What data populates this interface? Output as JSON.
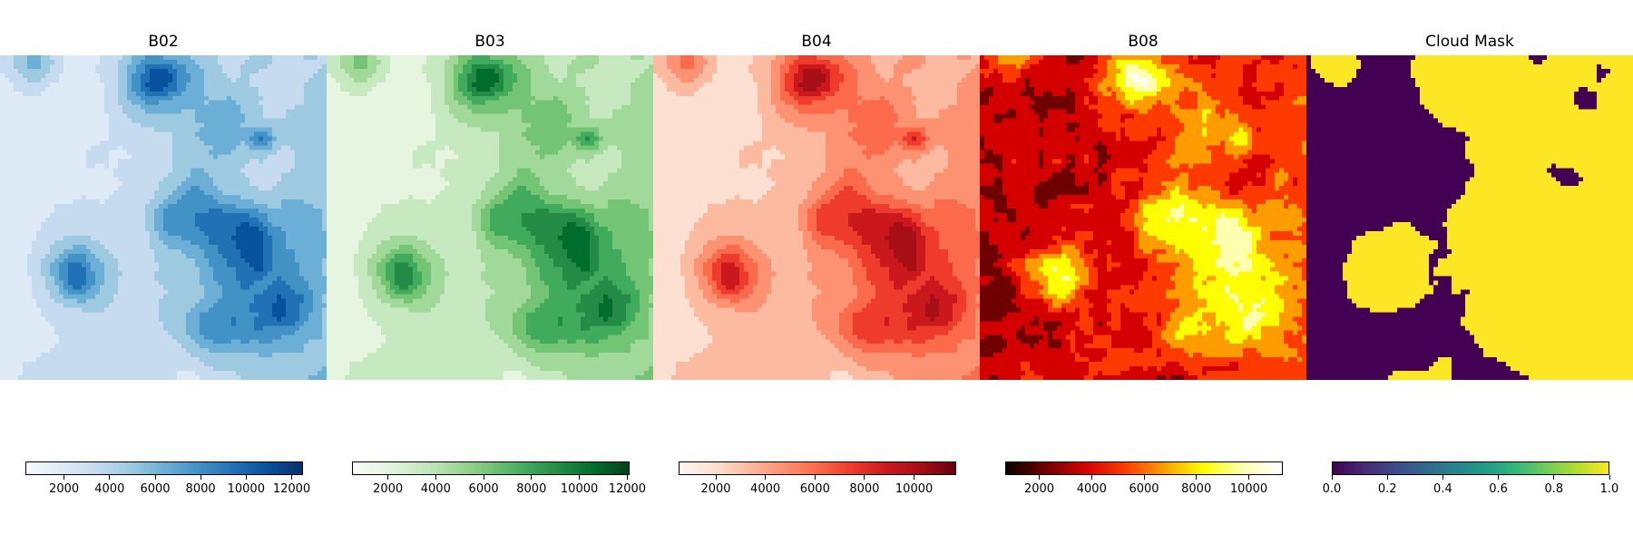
{
  "chart_data": [
    {
      "type": "heatmap",
      "title": "B02",
      "colormap": "Blues",
      "colors": [
        "#f7fbff",
        "#deebf7",
        "#c6dbef",
        "#9ecae1",
        "#6baed6",
        "#4292c6",
        "#2171b5",
        "#08519c",
        "#08306b"
      ],
      "vmin": 300,
      "vmax": 12500,
      "ticks": [
        2000,
        4000,
        6000,
        8000,
        10000,
        12000
      ],
      "tick_labels": [
        "2000",
        "4000",
        "6000",
        "8000",
        "10000",
        "12000"
      ]
    },
    {
      "type": "heatmap",
      "title": "B03",
      "colormap": "Greens",
      "colors": [
        "#f7fcf5",
        "#e5f5e0",
        "#c7e9c0",
        "#a1d99b",
        "#74c476",
        "#41ab5d",
        "#238b45",
        "#006d2c",
        "#00441b"
      ],
      "vmin": 500,
      "vmax": 12100,
      "ticks": [
        2000,
        4000,
        6000,
        8000,
        10000,
        12000
      ],
      "tick_labels": [
        "2000",
        "4000",
        "6000",
        "8000",
        "10000",
        "12000"
      ]
    },
    {
      "type": "heatmap",
      "title": "B04",
      "colormap": "Reds",
      "colors": [
        "#fff5f0",
        "#fee0d2",
        "#fcbba1",
        "#fc9272",
        "#fb6a4a",
        "#ef3b2c",
        "#cb181d",
        "#a50f15",
        "#67000d"
      ],
      "vmin": 500,
      "vmax": 11700,
      "ticks": [
        2000,
        4000,
        6000,
        8000,
        10000
      ],
      "tick_labels": [
        "2000",
        "4000",
        "6000",
        "8000",
        "10000"
      ]
    },
    {
      "type": "heatmap",
      "title": "B08",
      "colormap": "hot",
      "colors": [
        "#0b0000",
        "#6e0000",
        "#d40000",
        "#ff3a00",
        "#ff9d00",
        "#fffe00",
        "#ffffb0",
        "#ffffff"
      ],
      "vmin": 700,
      "vmax": 11300,
      "ticks": [
        2000,
        4000,
        6000,
        8000,
        10000
      ],
      "tick_labels": [
        "2000",
        "4000",
        "6000",
        "8000",
        "10000"
      ]
    },
    {
      "type": "heatmap",
      "title": "Cloud Mask",
      "colormap": "viridis",
      "colors": [
        "#440154",
        "#482878",
        "#3e4989",
        "#31688e",
        "#26828e",
        "#1f9e89",
        "#35b779",
        "#6ece58",
        "#b5de2b",
        "#fde725"
      ],
      "vmin": 0.0,
      "vmax": 1.0,
      "ticks": [
        0.0,
        0.2,
        0.4,
        0.6,
        0.8,
        1.0
      ],
      "tick_labels": [
        "0.0",
        "0.2",
        "0.4",
        "0.6",
        "0.8",
        "1.0"
      ]
    }
  ]
}
